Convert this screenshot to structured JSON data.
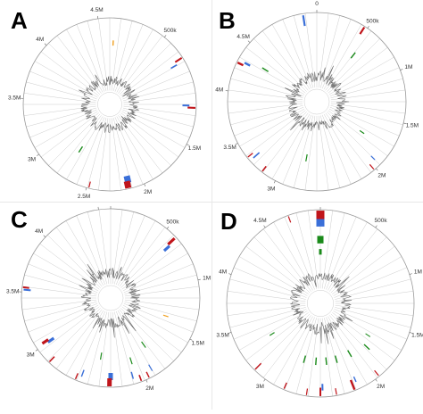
{
  "panels": [
    {
      "letter": "A",
      "genome_mb": 4.6,
      "ticks": [
        {
          "label": "4.5M",
          "pos": 4.5
        },
        {
          "label": "500k",
          "pos": 0.5
        },
        {
          "label": "1.5M",
          "pos": 1.5
        },
        {
          "label": "2M",
          "pos": 2.0
        },
        {
          "label": "2.5M",
          "pos": 2.5
        },
        {
          "label": "3M",
          "pos": 3.0
        },
        {
          "label": "3.5M",
          "pos": 3.5
        },
        {
          "label": "4M",
          "pos": 4.0
        }
      ],
      "features": [
        {
          "pos": 0.04,
          "color": "orange",
          "r0": 0.68,
          "r1": 0.74,
          "w": 1.4
        },
        {
          "pos": 0.73,
          "color": "red",
          "r0": 0.9,
          "r1": 0.99,
          "w": 2.0
        },
        {
          "pos": 0.76,
          "color": "blue",
          "r0": 0.82,
          "r1": 0.9,
          "w": 1.6
        },
        {
          "pos": 1.16,
          "color": "blue",
          "r0": 0.84,
          "r1": 0.92,
          "w": 2.0
        },
        {
          "pos": 1.18,
          "color": "red",
          "r0": 0.9,
          "r1": 0.99,
          "w": 2.2
        },
        {
          "pos": 2.13,
          "color": "blue",
          "r0": 0.85,
          "r1": 0.93,
          "w": 7.0
        },
        {
          "pos": 2.14,
          "color": "red",
          "r0": 0.91,
          "r1": 0.99,
          "w": 7.0
        },
        {
          "pos": 2.48,
          "color": "red",
          "r0": 0.92,
          "r1": 0.99,
          "w": 1.2
        },
        {
          "pos": 2.72,
          "color": "green",
          "r0": 0.58,
          "r1": 0.66,
          "w": 1.4
        }
      ]
    },
    {
      "letter": "B",
      "genome_mb": 5.2,
      "ticks": [
        {
          "label": "4.5M",
          "pos": 4.5
        },
        {
          "label": "0",
          "pos": 0.0
        },
        {
          "label": "500k",
          "pos": 0.5
        },
        {
          "label": "1M",
          "pos": 1.0
        },
        {
          "label": "1.5M",
          "pos": 1.5
        },
        {
          "label": "2M",
          "pos": 2.0
        },
        {
          "label": "3M",
          "pos": 3.0
        },
        {
          "label": "3.5M",
          "pos": 3.5
        },
        {
          "label": "4M",
          "pos": 4.0
        }
      ],
      "features": [
        {
          "pos": 5.07,
          "color": "blue",
          "r0": 0.86,
          "r1": 0.98,
          "w": 2.2
        },
        {
          "pos": 0.47,
          "color": "red",
          "r0": 0.9,
          "r1": 0.99,
          "w": 2.2
        },
        {
          "pos": 0.55,
          "color": "green",
          "r0": 0.62,
          "r1": 0.7,
          "w": 1.4
        },
        {
          "pos": 1.79,
          "color": "green",
          "r0": 0.58,
          "r1": 0.64,
          "w": 1.2
        },
        {
          "pos": 1.95,
          "color": "blue",
          "r0": 0.86,
          "r1": 0.92,
          "w": 1.2
        },
        {
          "pos": 2.02,
          "color": "red",
          "r0": 0.92,
          "r1": 0.99,
          "w": 1.2
        },
        {
          "pos": 2.75,
          "color": "green",
          "r0": 0.6,
          "r1": 0.68,
          "w": 1.2
        },
        {
          "pos": 3.15,
          "color": "red",
          "r0": 0.92,
          "r1": 0.99,
          "w": 1.6
        },
        {
          "pos": 3.3,
          "color": "blue",
          "r0": 0.86,
          "r1": 0.95,
          "w": 1.6
        },
        {
          "pos": 3.34,
          "color": "red",
          "r0": 0.92,
          "r1": 0.99,
          "w": 1.4
        },
        {
          "pos": 4.28,
          "color": "red",
          "r0": 0.92,
          "r1": 0.99,
          "w": 2.4
        },
        {
          "pos": 4.31,
          "color": "blue",
          "r0": 0.85,
          "r1": 0.92,
          "w": 2.4
        },
        {
          "pos": 4.36,
          "color": "green",
          "r0": 0.64,
          "r1": 0.72,
          "w": 1.4
        }
      ]
    },
    {
      "letter": "C",
      "genome_mb": 4.6,
      "ticks": [
        {
          "label": "4.5M",
          "pos": 4.5
        },
        {
          "label": "0",
          "pos": 0.0
        },
        {
          "label": "500k",
          "pos": 0.5
        },
        {
          "label": "1M",
          "pos": 1.0
        },
        {
          "label": "1.5M",
          "pos": 1.5
        },
        {
          "label": "2M",
          "pos": 2.0
        },
        {
          "label": "3M",
          "pos": 3.0
        },
        {
          "label": "3.5M",
          "pos": 3.5
        },
        {
          "label": "4M",
          "pos": 4.0
        }
      ],
      "features": [
        {
          "pos": 0.6,
          "color": "red",
          "r0": 0.88,
          "r1": 0.98,
          "w": 3.2
        },
        {
          "pos": 0.62,
          "color": "blue",
          "r0": 0.8,
          "r1": 0.88,
          "w": 3.2
        },
        {
          "pos": 1.38,
          "color": "orange",
          "r0": 0.62,
          "r1": 0.68,
          "w": 1.2
        },
        {
          "pos": 1.85,
          "color": "green",
          "r0": 0.6,
          "r1": 0.68,
          "w": 1.2
        },
        {
          "pos": 1.92,
          "color": "blue",
          "r0": 0.86,
          "r1": 0.94,
          "w": 1.2
        },
        {
          "pos": 1.97,
          "color": "red",
          "r0": 0.92,
          "r1": 0.99,
          "w": 1.4
        },
        {
          "pos": 2.04,
          "color": "red",
          "r0": 0.92,
          "r1": 0.99,
          "w": 1.6
        },
        {
          "pos": 2.07,
          "color": "green",
          "r0": 0.7,
          "r1": 0.78,
          "w": 1.2
        },
        {
          "pos": 2.1,
          "color": "blue",
          "r0": 0.86,
          "r1": 0.94,
          "w": 1.4
        },
        {
          "pos": 2.3,
          "color": "blue",
          "r0": 0.84,
          "r1": 0.92,
          "w": 5.0
        },
        {
          "pos": 2.31,
          "color": "red",
          "r0": 0.9,
          "r1": 0.99,
          "w": 5.0
        },
        {
          "pos": 2.42,
          "color": "green",
          "r0": 0.62,
          "r1": 0.7,
          "w": 1.2
        },
        {
          "pos": 2.56,
          "color": "blue",
          "r0": 0.86,
          "r1": 0.94,
          "w": 1.4
        },
        {
          "pos": 2.6,
          "color": "red",
          "r0": 0.92,
          "r1": 0.99,
          "w": 1.4
        },
        {
          "pos": 2.86,
          "color": "red",
          "r0": 0.91,
          "r1": 0.99,
          "w": 1.6
        },
        {
          "pos": 3.0,
          "color": "blue",
          "r0": 0.78,
          "r1": 0.86,
          "w": 3.2
        },
        {
          "pos": 3.02,
          "color": "red",
          "r0": 0.84,
          "r1": 0.92,
          "w": 3.2
        },
        {
          "pos": 3.52,
          "color": "blue",
          "r0": 0.9,
          "r1": 0.98,
          "w": 2.0
        },
        {
          "pos": 3.54,
          "color": "red",
          "r0": 0.92,
          "r1": 0.99,
          "w": 2.0
        }
      ]
    },
    {
      "letter": "D",
      "genome_mb": 5.0,
      "ticks": [
        {
          "label": "5M0",
          "pos": 0.0
        },
        {
          "label": "500k",
          "pos": 0.5
        },
        {
          "label": "1M",
          "pos": 1.0
        },
        {
          "label": "1.5M",
          "pos": 1.5
        },
        {
          "label": "2M",
          "pos": 2.0
        },
        {
          "label": "3M",
          "pos": 3.0
        },
        {
          "label": "3.5M",
          "pos": 3.5
        },
        {
          "label": "4M",
          "pos": 4.0
        },
        {
          "label": "4.5M",
          "pos": 4.5
        }
      ],
      "features": [
        {
          "pos": 0.0,
          "color": "red",
          "r0": 0.9,
          "r1": 0.99,
          "w": 9.0
        },
        {
          "pos": 0.0,
          "color": "blue",
          "r0": 0.82,
          "r1": 0.9,
          "w": 9.0
        },
        {
          "pos": 0.0,
          "color": "green",
          "r0": 0.64,
          "r1": 0.72,
          "w": 7.0
        },
        {
          "pos": 0.0,
          "color": "green",
          "r0": 0.52,
          "r1": 0.58,
          "w": 3.0
        },
        {
          "pos": 4.72,
          "color": "red",
          "r0": 0.92,
          "r1": 0.99,
          "w": 1.2
        },
        {
          "pos": 1.72,
          "color": "green",
          "r0": 0.58,
          "r1": 0.64,
          "w": 1.0
        },
        {
          "pos": 1.85,
          "color": "green",
          "r0": 0.64,
          "r1": 0.72,
          "w": 1.4
        },
        {
          "pos": 1.96,
          "color": "red",
          "r0": 0.92,
          "r1": 0.99,
          "w": 1.2
        },
        {
          "pos": 2.08,
          "color": "green",
          "r0": 0.58,
          "r1": 0.66,
          "w": 1.4
        },
        {
          "pos": 2.16,
          "color": "blue",
          "r0": 0.86,
          "r1": 0.92,
          "w": 1.4
        },
        {
          "pos": 2.2,
          "color": "red",
          "r0": 0.88,
          "r1": 0.99,
          "w": 2.4
        },
        {
          "pos": 2.28,
          "color": "green",
          "r0": 0.58,
          "r1": 0.66,
          "w": 1.4
        },
        {
          "pos": 2.36,
          "color": "red",
          "r0": 0.92,
          "r1": 0.99,
          "w": 1.2
        },
        {
          "pos": 2.42,
          "color": "green",
          "r0": 0.58,
          "r1": 0.66,
          "w": 1.4
        },
        {
          "pos": 2.48,
          "color": "blue",
          "r0": 0.86,
          "r1": 0.93,
          "w": 2.0
        },
        {
          "pos": 2.5,
          "color": "red",
          "r0": 0.9,
          "r1": 0.99,
          "w": 2.0
        },
        {
          "pos": 2.56,
          "color": "green",
          "r0": 0.58,
          "r1": 0.66,
          "w": 1.4
        },
        {
          "pos": 2.62,
          "color": "red",
          "r0": 0.92,
          "r1": 0.99,
          "w": 1.2
        },
        {
          "pos": 2.72,
          "color": "green",
          "r0": 0.58,
          "r1": 0.66,
          "w": 1.4
        },
        {
          "pos": 2.82,
          "color": "red",
          "r0": 0.92,
          "r1": 0.99,
          "w": 1.4
        },
        {
          "pos": 3.12,
          "color": "red",
          "r0": 0.9,
          "r1": 0.99,
          "w": 1.4
        },
        {
          "pos": 3.3,
          "color": "green",
          "r0": 0.58,
          "r1": 0.64,
          "w": 1.2
        }
      ]
    }
  ],
  "colors": {
    "red": "#c0151b",
    "blue": "#3a6fd8",
    "green": "#1a8a1a",
    "orange": "#f0a020",
    "ring": "#999999",
    "spoke": "#cccccc",
    "gc": "#6e6e6e"
  }
}
